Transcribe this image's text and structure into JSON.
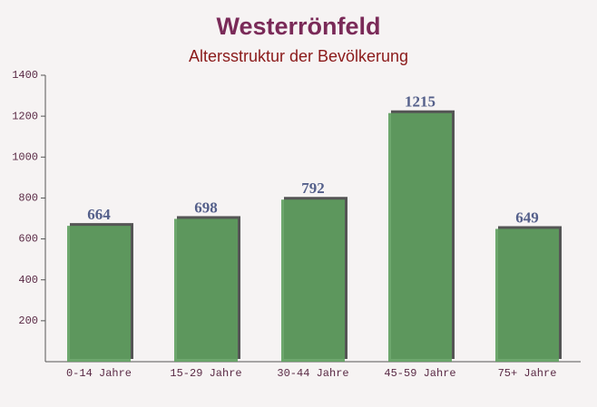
{
  "chart_data": {
    "type": "bar",
    "title": "Westerrönfeld",
    "subtitle": "Altersstruktur der Bevölkerung",
    "categories": [
      "0-14 Jahre",
      "15-29 Jahre",
      "30-44 Jahre",
      "45-59 Jahre",
      "75+ Jahre"
    ],
    "values": [
      664,
      698,
      792,
      1215,
      649
    ],
    "color": "#5e9e5e",
    "ylim": [
      0,
      1400
    ],
    "yticks": [
      200,
      400,
      600,
      800,
      1000,
      1200,
      1400
    ]
  }
}
